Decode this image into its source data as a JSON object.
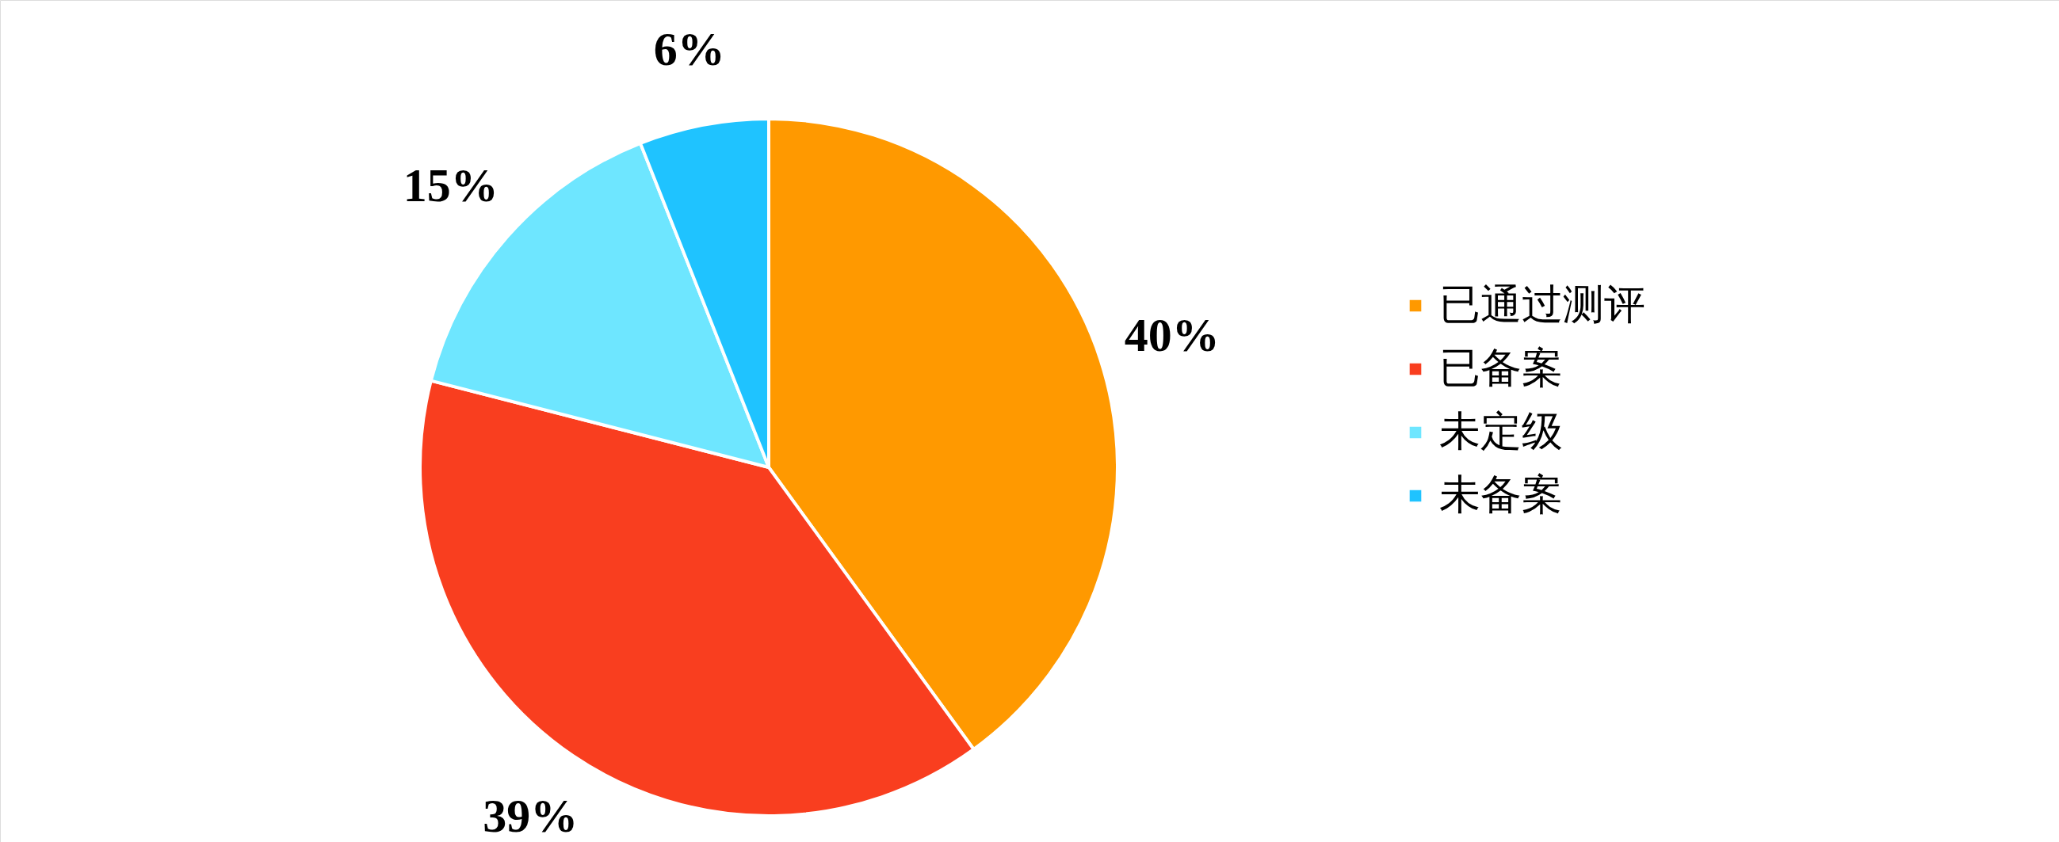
{
  "chart_data": {
    "type": "pie",
    "categories": [
      "已通过测评",
      "已备案",
      "未定级",
      "未备案"
    ],
    "values": [
      40,
      39,
      15,
      6
    ],
    "colors": [
      "#ff9900",
      "#f93e1f",
      "#6ee6ff",
      "#1fc3ff"
    ],
    "value_labels": [
      "40%",
      "39%",
      "15%",
      "6%"
    ],
    "legend": "right"
  }
}
